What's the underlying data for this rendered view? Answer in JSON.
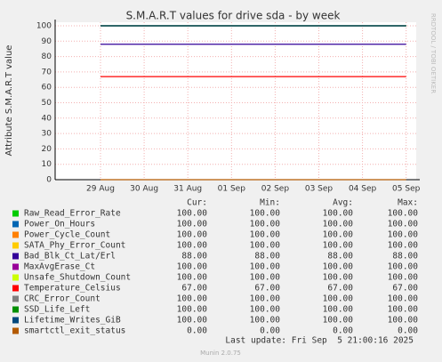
{
  "chart_data": {
    "type": "line",
    "title": "S.M.A.R.T values for drive sda - by week",
    "y_label": "Attribute S.M.A.R.T value",
    "categories": [
      "29 Aug",
      "30 Aug",
      "31 Aug",
      "01 Sep",
      "02 Sep",
      "03 Sep",
      "04 Sep",
      "05 Sep"
    ],
    "ylim": [
      0,
      100
    ],
    "yticks": [
      0,
      10,
      20,
      30,
      40,
      50,
      60,
      70,
      80,
      90,
      100
    ],
    "grid": true,
    "stat_headers": [
      "Cur:",
      "Min:",
      "Avg:",
      "Max:"
    ],
    "series": [
      {
        "name": "Raw_Read_Error_Rate",
        "color": "#00cc00",
        "values": [
          100,
          100,
          100,
          100,
          100,
          100,
          100,
          100
        ],
        "stats": [
          "100.00",
          "100.00",
          "100.00",
          "100.00"
        ]
      },
      {
        "name": "Power_On_Hours",
        "color": "#0066b3",
        "values": [
          100,
          100,
          100,
          100,
          100,
          100,
          100,
          100
        ],
        "stats": [
          "100.00",
          "100.00",
          "100.00",
          "100.00"
        ]
      },
      {
        "name": "Power_Cycle_Count",
        "color": "#ff8000",
        "values": [
          100,
          100,
          100,
          100,
          100,
          100,
          100,
          100
        ],
        "stats": [
          "100.00",
          "100.00",
          "100.00",
          "100.00"
        ]
      },
      {
        "name": "SATA_Phy_Error_Count",
        "color": "#ffcc00",
        "values": [
          100,
          100,
          100,
          100,
          100,
          100,
          100,
          100
        ],
        "stats": [
          "100.00",
          "100.00",
          "100.00",
          "100.00"
        ]
      },
      {
        "name": "Bad_Blk_Ct_Lat/Erl",
        "color": "#330099",
        "values": [
          88,
          88,
          88,
          88,
          88,
          88,
          88,
          88
        ],
        "stats": [
          "88.00",
          "88.00",
          "88.00",
          "88.00"
        ]
      },
      {
        "name": "MaxAvgErase_Ct",
        "color": "#990099",
        "values": [
          100,
          100,
          100,
          100,
          100,
          100,
          100,
          100
        ],
        "stats": [
          "100.00",
          "100.00",
          "100.00",
          "100.00"
        ]
      },
      {
        "name": "Unsafe_Shutdown_Count",
        "color": "#ccff00",
        "values": [
          100,
          100,
          100,
          100,
          100,
          100,
          100,
          100
        ],
        "stats": [
          "100.00",
          "100.00",
          "100.00",
          "100.00"
        ]
      },
      {
        "name": "Temperature_Celsius",
        "color": "#ff0000",
        "values": [
          67,
          67,
          67,
          67,
          67,
          67,
          67,
          67
        ],
        "stats": [
          "67.00",
          "67.00",
          "67.00",
          "67.00"
        ]
      },
      {
        "name": "CRC_Error_Count",
        "color": "#808080",
        "values": [
          100,
          100,
          100,
          100,
          100,
          100,
          100,
          100
        ],
        "stats": [
          "100.00",
          "100.00",
          "100.00",
          "100.00"
        ]
      },
      {
        "name": "SSD_Life_Left",
        "color": "#008f00",
        "values": [
          100,
          100,
          100,
          100,
          100,
          100,
          100,
          100
        ],
        "stats": [
          "100.00",
          "100.00",
          "100.00",
          "100.00"
        ]
      },
      {
        "name": "Lifetime_Writes_GiB",
        "color": "#00487d",
        "values": [
          100,
          100,
          100,
          100,
          100,
          100,
          100,
          100
        ],
        "stats": [
          "100.00",
          "100.00",
          "100.00",
          "100.00"
        ]
      },
      {
        "name": "smartctl_exit_status",
        "color": "#b35a00",
        "values": [
          0,
          0,
          0,
          0,
          0,
          0,
          0,
          0
        ],
        "stats": [
          "0.00",
          "0.00",
          "0.00",
          "0.00"
        ]
      }
    ],
    "last_update": "Last update: Fri Sep  5 21:00:16 2025",
    "generator": "Munin 2.0.75",
    "watermark": "RRDTOOL / TOBI OETIKER"
  }
}
